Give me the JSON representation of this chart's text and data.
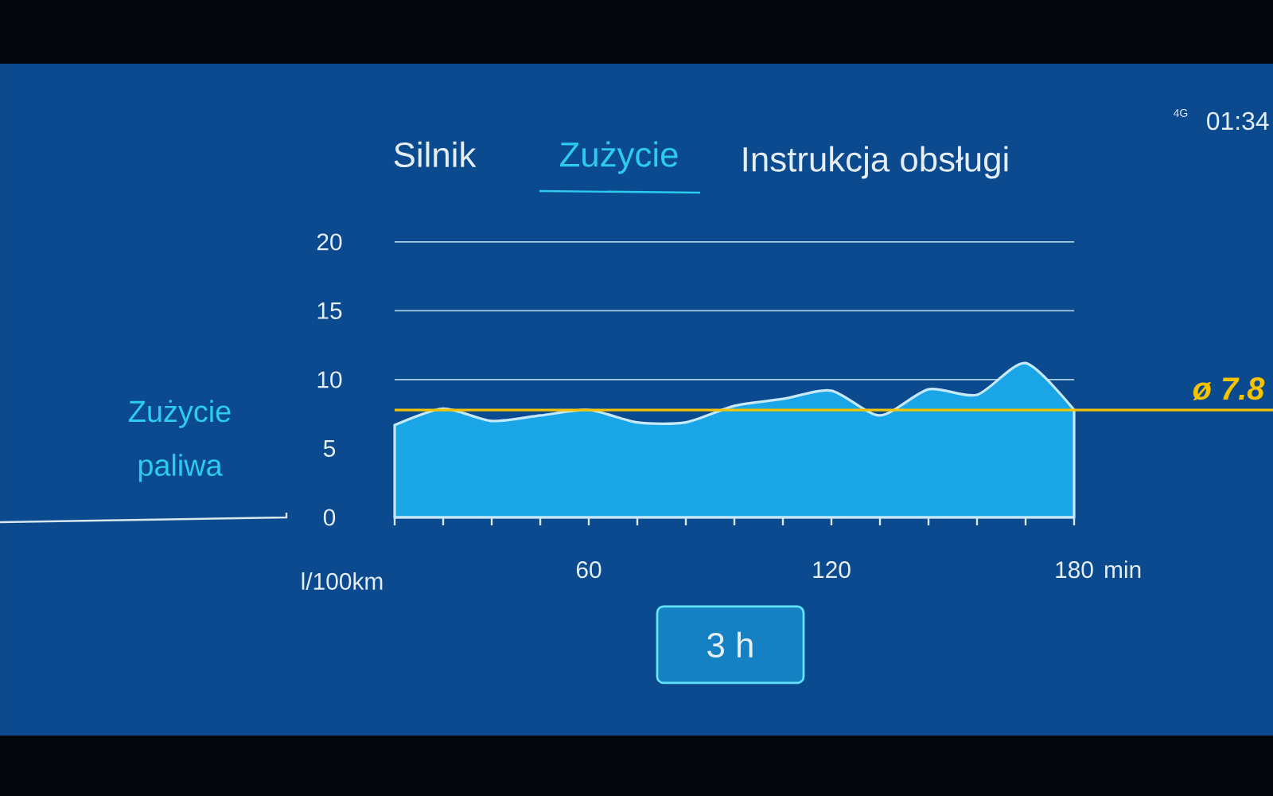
{
  "chart_data": {
    "type": "area",
    "title": "Zużycie paliwa",
    "xlabel": "min",
    "ylabel": "l/100km",
    "x": [
      12,
      24,
      36,
      48,
      60,
      72,
      84,
      96,
      108,
      120,
      132,
      144,
      156,
      168,
      180
    ],
    "series": [
      {
        "color": "#1aa6e6",
        "values": [
          6.7,
          7.9,
          7.0,
          7.4,
          7.8,
          6.9,
          6.9,
          8.1,
          8.6,
          9.2,
          7.4,
          9.3,
          8.9,
          11.2,
          7.8
        ]
      }
    ],
    "xlim": [
      12,
      180
    ],
    "xticks": [
      {
        "value": 12,
        "label": null
      },
      {
        "value": 24,
        "label": null
      },
      {
        "value": 36,
        "label": null
      },
      {
        "value": 48,
        "label": null
      },
      60,
      {
        "value": 72,
        "label": null
      },
      {
        "value": 84,
        "label": null
      },
      {
        "value": 96,
        "label": null
      },
      {
        "value": 108,
        "label": null
      },
      120,
      {
        "value": 132,
        "label": null
      },
      {
        "value": 144,
        "label": null
      },
      {
        "value": 156,
        "label": null
      },
      {
        "value": 168,
        "label": null
      },
      180
    ],
    "ylim": [
      0,
      20
    ],
    "yticks": [
      0,
      5,
      10,
      15,
      20
    ],
    "grid": "y",
    "ref_lines": [
      {
        "axis": "y",
        "value": 7.8,
        "label": "ø 7.8",
        "color": "#f5c400"
      }
    ],
    "annotations": [
      "Silnik",
      "Zużycie",
      "Instrukcja obsługi",
      "3 h",
      "4G",
      "01:34"
    ]
  }
}
